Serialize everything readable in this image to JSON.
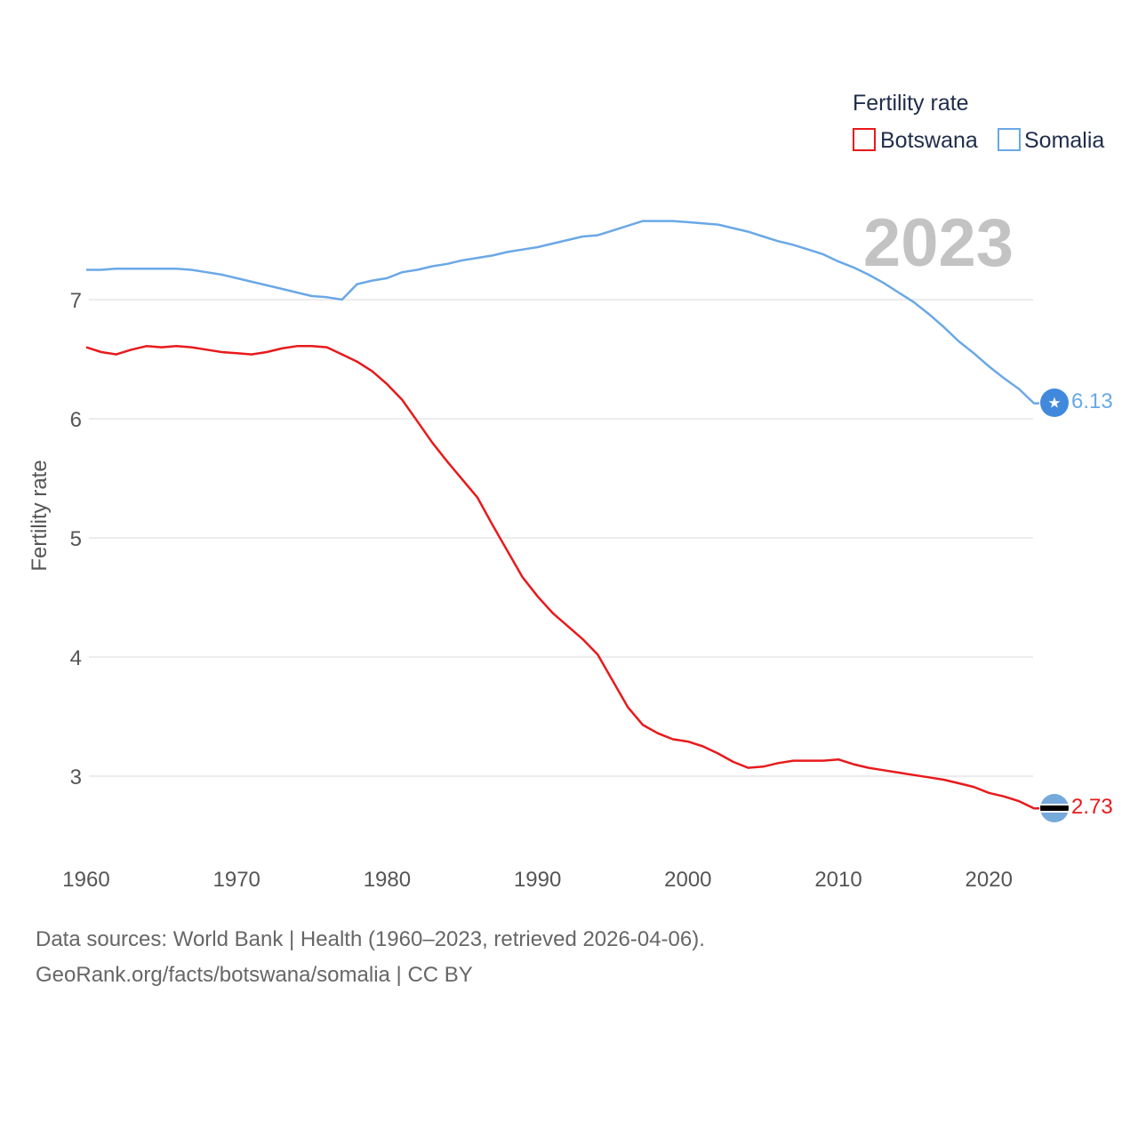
{
  "legend": {
    "title": "Fertility rate"
  },
  "year_label": "2023",
  "footer": {
    "source": "Data sources: World Bank | Health (1960–2023, retrieved 2026-04-06).",
    "credit": "GeoRank.org/facts/botswana/somalia | CC BY"
  },
  "icons": {
    "botswana": "botswana-flag-icon",
    "somalia": "somalia-flag-icon"
  },
  "chart_data": {
    "type": "line",
    "title": "",
    "xlabel": "",
    "ylabel": "Fertility rate",
    "xlim": [
      1960,
      2023
    ],
    "ylim": [
      2.5,
      8.0
    ],
    "x_ticks": [
      1960,
      1970,
      1980,
      1990,
      2000,
      2010,
      2020
    ],
    "y_ticks": [
      3,
      4,
      5,
      6,
      7
    ],
    "grid": true,
    "legend_position": "top-right",
    "x": [
      1960,
      1961,
      1962,
      1963,
      1964,
      1965,
      1966,
      1967,
      1968,
      1969,
      1970,
      1971,
      1972,
      1973,
      1974,
      1975,
      1976,
      1977,
      1978,
      1979,
      1980,
      1981,
      1982,
      1983,
      1984,
      1985,
      1986,
      1987,
      1988,
      1989,
      1990,
      1991,
      1992,
      1993,
      1994,
      1995,
      1996,
      1997,
      1998,
      1999,
      2000,
      2001,
      2002,
      2003,
      2004,
      2005,
      2006,
      2007,
      2008,
      2009,
      2010,
      2011,
      2012,
      2013,
      2014,
      2015,
      2016,
      2017,
      2018,
      2019,
      2020,
      2021,
      2022,
      2023
    ],
    "series": [
      {
        "name": "Botswana",
        "color": "#e8191b",
        "end_label": "2.73",
        "values": [
          6.6,
          6.56,
          6.54,
          6.58,
          6.61,
          6.6,
          6.61,
          6.6,
          6.58,
          6.56,
          6.55,
          6.54,
          6.56,
          6.59,
          6.61,
          6.61,
          6.6,
          6.54,
          6.48,
          6.4,
          6.29,
          6.16,
          5.98,
          5.8,
          5.64,
          5.49,
          5.34,
          5.11,
          4.89,
          4.67,
          4.51,
          4.37,
          4.26,
          4.15,
          4.02,
          3.8,
          3.58,
          3.43,
          3.36,
          3.31,
          3.29,
          3.25,
          3.19,
          3.12,
          3.07,
          3.08,
          3.11,
          3.13,
          3.13,
          3.13,
          3.14,
          3.1,
          3.07,
          3.05,
          3.03,
          3.01,
          2.99,
          2.97,
          2.94,
          2.91,
          2.86,
          2.83,
          2.79,
          2.73
        ]
      },
      {
        "name": "Somalia",
        "color": "#6aa8e6",
        "end_label": "6.13",
        "values": [
          7.25,
          7.25,
          7.26,
          7.26,
          7.26,
          7.26,
          7.26,
          7.25,
          7.23,
          7.21,
          7.18,
          7.15,
          7.12,
          7.09,
          7.06,
          7.03,
          7.02,
          7.0,
          7.13,
          7.16,
          7.18,
          7.23,
          7.25,
          7.28,
          7.3,
          7.33,
          7.35,
          7.37,
          7.4,
          7.42,
          7.44,
          7.47,
          7.5,
          7.53,
          7.54,
          7.58,
          7.62,
          7.66,
          7.66,
          7.66,
          7.65,
          7.64,
          7.63,
          7.6,
          7.57,
          7.53,
          7.49,
          7.46,
          7.42,
          7.38,
          7.32,
          7.27,
          7.21,
          7.14,
          7.06,
          6.98,
          6.88,
          6.77,
          6.65,
          6.55,
          6.44,
          6.34,
          6.25,
          6.13
        ]
      }
    ]
  }
}
